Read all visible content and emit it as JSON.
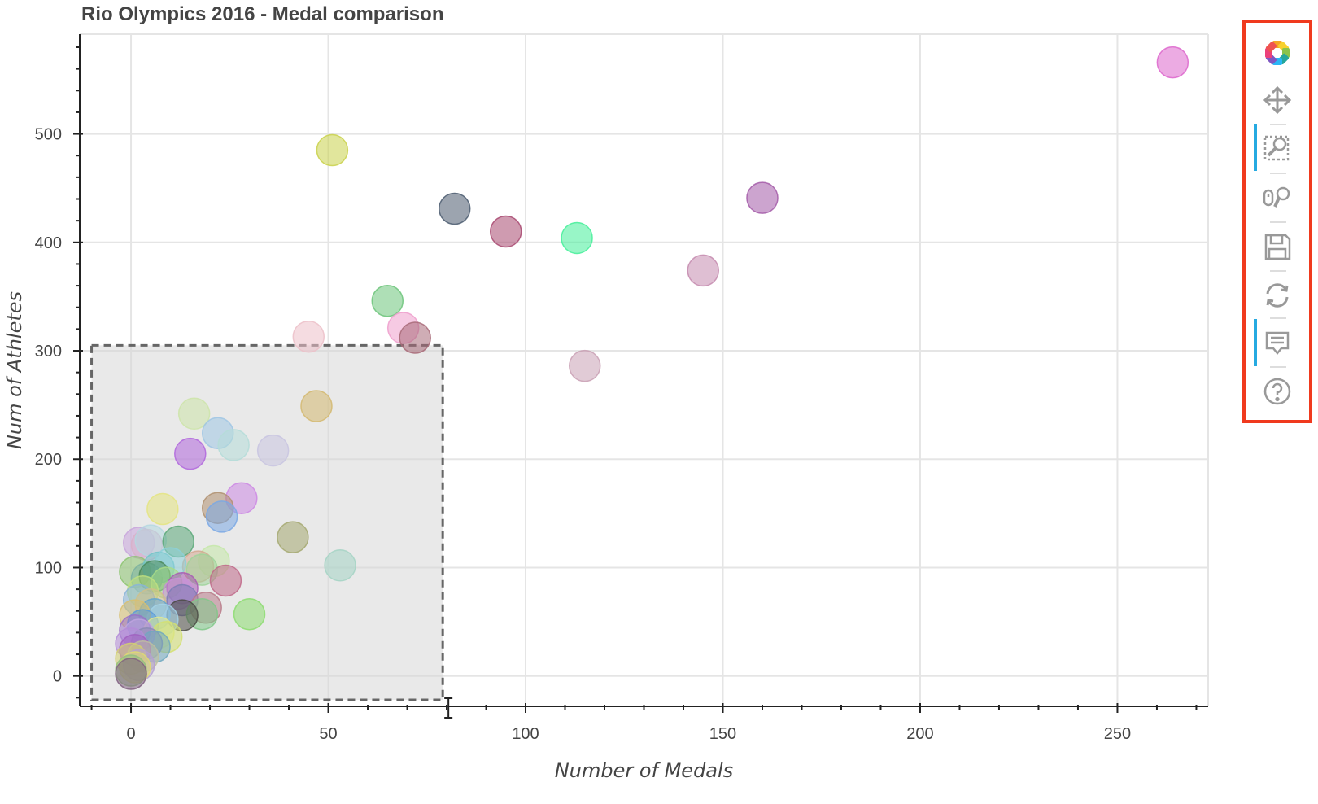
{
  "chart_data": {
    "type": "scatter",
    "title": "Rio Olympics 2016 - Medal comparison",
    "xlabel": "Number of Medals",
    "ylabel": "Num of Athletes",
    "xlim": [
      -13,
      273
    ],
    "ylim": [
      -28,
      592
    ],
    "x_ticks": [
      0,
      50,
      100,
      150,
      200,
      250
    ],
    "x_tick_labels": [
      "0",
      "50",
      "100",
      "150",
      "200",
      "250"
    ],
    "y_ticks": [
      0,
      100,
      200,
      300,
      400,
      500
    ],
    "y_tick_labels": [
      "0",
      "100",
      "200",
      "300",
      "400",
      "500"
    ],
    "grid": true,
    "box_select_region": {
      "x": [
        -10,
        79
      ],
      "y": [
        -22,
        305
      ]
    },
    "points": [
      {
        "x": 264,
        "y": 566,
        "color": "#dd66cc"
      },
      {
        "x": 51,
        "y": 485,
        "color": "#c9d14a"
      },
      {
        "x": 82,
        "y": 431,
        "color": "#4a5a6e"
      },
      {
        "x": 160,
        "y": 441,
        "color": "#a35aa8"
      },
      {
        "x": 95,
        "y": 410,
        "color": "#a84870"
      },
      {
        "x": 113,
        "y": 404,
        "color": "#44ee99"
      },
      {
        "x": 145,
        "y": 374,
        "color": "#c48aae"
      },
      {
        "x": 65,
        "y": 346,
        "color": "#6cc47a"
      },
      {
        "x": 45,
        "y": 313,
        "color": "#ecc0c8"
      },
      {
        "x": 69,
        "y": 321,
        "color": "#ee9ecc"
      },
      {
        "x": 72,
        "y": 312,
        "color": "#a86a78"
      },
      {
        "x": 115,
        "y": 286,
        "color": "#c9a0b4"
      },
      {
        "x": 47,
        "y": 249,
        "color": "#d4b870"
      },
      {
        "x": 16,
        "y": 242,
        "color": "#cce4a8"
      },
      {
        "x": 22,
        "y": 224,
        "color": "#9fc6e4"
      },
      {
        "x": 26,
        "y": 213,
        "color": "#b4dcd8"
      },
      {
        "x": 36,
        "y": 208,
        "color": "#c8c4e0"
      },
      {
        "x": 15,
        "y": 205,
        "color": "#b066dd"
      },
      {
        "x": 28,
        "y": 164,
        "color": "#cc88e4"
      },
      {
        "x": 8,
        "y": 154,
        "color": "#e4e480"
      },
      {
        "x": 22,
        "y": 155,
        "color": "#b09070"
      },
      {
        "x": 23,
        "y": 147,
        "color": "#7aa8e4"
      },
      {
        "x": 41,
        "y": 128,
        "color": "#a4a870"
      },
      {
        "x": 53,
        "y": 102,
        "color": "#a4d4c4"
      },
      {
        "x": 2,
        "y": 123,
        "color": "#c8a4dc"
      },
      {
        "x": 4,
        "y": 121,
        "color": "#d8b0c8"
      },
      {
        "x": 5,
        "y": 125,
        "color": "#b4d8e0"
      },
      {
        "x": 12,
        "y": 124,
        "color": "#5aa878"
      },
      {
        "x": 21,
        "y": 106,
        "color": "#c4e8a8"
      },
      {
        "x": 17,
        "y": 101,
        "color": "#d4a890"
      },
      {
        "x": 18,
        "y": 98,
        "color": "#9fd49a"
      },
      {
        "x": 24,
        "y": 88,
        "color": "#c06888"
      },
      {
        "x": 1,
        "y": 96,
        "color": "#8cc470"
      },
      {
        "x": 4,
        "y": 90,
        "color": "#7ab0a0"
      },
      {
        "x": 7,
        "y": 100,
        "color": "#70c4c8"
      },
      {
        "x": 10,
        "y": 104,
        "color": "#8cd0d8"
      },
      {
        "x": 6,
        "y": 92,
        "color": "#4a8a5a"
      },
      {
        "x": 9,
        "y": 86,
        "color": "#a8dc88"
      },
      {
        "x": 13,
        "y": 81,
        "color": "#a85ab4"
      },
      {
        "x": 12,
        "y": 76,
        "color": "#c890d8"
      },
      {
        "x": 3,
        "y": 78,
        "color": "#c0e080"
      },
      {
        "x": 2,
        "y": 70,
        "color": "#88b4d8"
      },
      {
        "x": 5,
        "y": 66,
        "color": "#d0c088"
      },
      {
        "x": 13,
        "y": 70,
        "color": "#7c7cb4"
      },
      {
        "x": 19,
        "y": 63,
        "color": "#b87a88"
      },
      {
        "x": 18,
        "y": 57,
        "color": "#80c888"
      },
      {
        "x": 30,
        "y": 57,
        "color": "#8cdc70"
      },
      {
        "x": 13,
        "y": 56,
        "color": "#4a4a44"
      },
      {
        "x": 6,
        "y": 57,
        "color": "#60a4d0"
      },
      {
        "x": 8,
        "y": 52,
        "color": "#a4d4e8"
      },
      {
        "x": 1,
        "y": 56,
        "color": "#d8c070"
      },
      {
        "x": 3,
        "y": 47,
        "color": "#5a9ad8"
      },
      {
        "x": 7,
        "y": 40,
        "color": "#e0e890"
      },
      {
        "x": 9,
        "y": 36,
        "color": "#d4e070"
      },
      {
        "x": 1,
        "y": 42,
        "color": "#9a70c8"
      },
      {
        "x": 2,
        "y": 38,
        "color": "#c0a4e0"
      },
      {
        "x": 4,
        "y": 30,
        "color": "#8a8ab4"
      },
      {
        "x": 6,
        "y": 27,
        "color": "#70a8c0"
      },
      {
        "x": 0,
        "y": 30,
        "color": "#b48cd8"
      },
      {
        "x": 1,
        "y": 24,
        "color": "#a060c0"
      },
      {
        "x": 3,
        "y": 18,
        "color": "#c0c0a0"
      },
      {
        "x": 0,
        "y": 16,
        "color": "#d4d070"
      },
      {
        "x": 2,
        "y": 10,
        "color": "#b4a0d4"
      },
      {
        "x": 1,
        "y": 8,
        "color": "#e0dc70"
      },
      {
        "x": 0,
        "y": 5,
        "color": "#90c080"
      },
      {
        "x": 0,
        "y": 2,
        "color": "#806080"
      }
    ]
  },
  "toolbar": {
    "tools": [
      {
        "name": "bokeh-logo-icon",
        "active": false
      },
      {
        "name": "pan-tool-icon",
        "active": false
      },
      {
        "name": "box-zoom-tool-icon",
        "active": true
      },
      {
        "name": "wheel-zoom-tool-icon",
        "active": false
      },
      {
        "name": "save-tool-icon",
        "active": false
      },
      {
        "name": "reset-tool-icon",
        "active": false
      },
      {
        "name": "hover-tool-icon",
        "active": true
      },
      {
        "name": "help-icon",
        "active": false
      }
    ],
    "accent_color": "#26aae1",
    "highlight_color": "#f03a1e"
  }
}
